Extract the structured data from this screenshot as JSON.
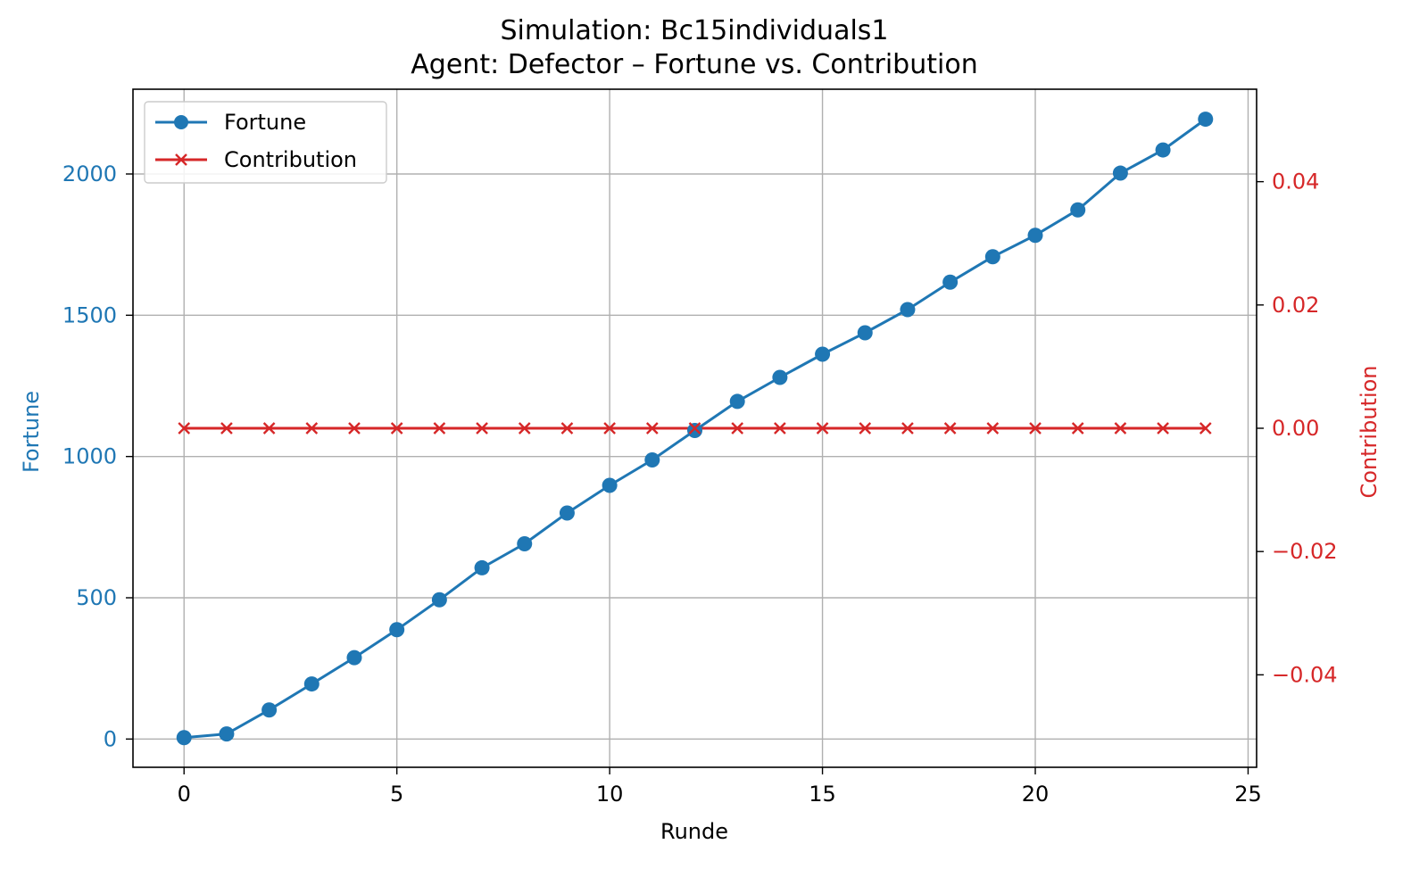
{
  "chart_data": {
    "type": "line",
    "title": "Simulation: Bc15individuals1",
    "subtitle": "Agent: Defector – Fortune vs. Contribution",
    "xlabel": "Runde",
    "ylabel_left": "Fortune",
    "ylabel_right": "Contribution",
    "xlim": [
      -1.2,
      25.2
    ],
    "ylim_left": [
      -100,
      2300
    ],
    "ylim_right": [
      -0.055,
      0.055
    ],
    "x_ticks": [
      0,
      5,
      10,
      15,
      20,
      25
    ],
    "y_left_ticks": [
      0,
      500,
      1000,
      1500,
      2000
    ],
    "y_right_ticks": [
      -0.04,
      -0.02,
      0.0,
      0.02,
      0.04
    ],
    "y_right_tick_labels": [
      "−0.04",
      "−0.02",
      "0.00",
      "0.02",
      "0.04"
    ],
    "grid": true,
    "legend_position": "top-left",
    "x": [
      0,
      1,
      2,
      3,
      4,
      5,
      6,
      7,
      8,
      9,
      10,
      11,
      12,
      13,
      14,
      15,
      16,
      17,
      18,
      19,
      20,
      21,
      22,
      23,
      24
    ],
    "series": [
      {
        "name": "Fortune",
        "axis": "left",
        "color": "#1f77b4",
        "marker": "circle",
        "values": [
          5,
          18,
          103,
          195,
          288,
          387,
          493,
          606,
          691,
          800,
          898,
          988,
          1092,
          1195,
          1280,
          1362,
          1438,
          1520,
          1617,
          1707,
          1783,
          1873,
          2003,
          2085,
          2194
        ]
      },
      {
        "name": "Contribution",
        "axis": "right",
        "color": "#d62728",
        "marker": "x",
        "values": [
          0,
          0,
          0,
          0,
          0,
          0,
          0,
          0,
          0,
          0,
          0,
          0,
          0,
          0,
          0,
          0,
          0,
          0,
          0,
          0,
          0,
          0,
          0,
          0,
          0
        ]
      }
    ]
  }
}
